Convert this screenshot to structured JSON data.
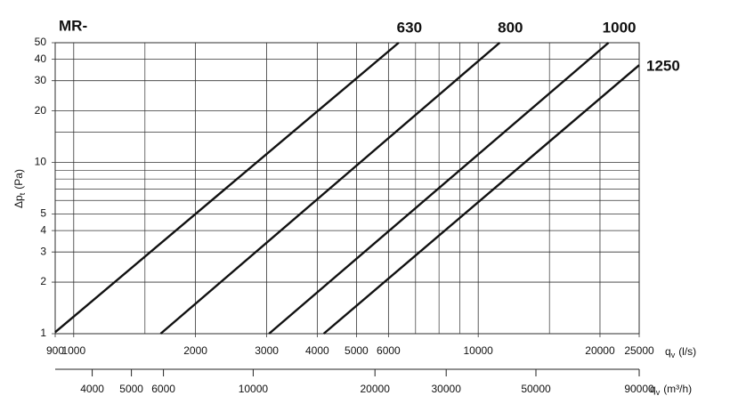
{
  "chart_data": {
    "type": "line",
    "title": "MR-",
    "ylabel": {
      "symbol": "Δp",
      "sub": "t",
      "unit": "(Pa)"
    },
    "xlabel": {
      "symbol": "q",
      "sub": "v",
      "unit": "(l/s)"
    },
    "x2label": {
      "symbol": "q",
      "sub": "v",
      "unit": "(m³/h)"
    },
    "log_x": true,
    "log_y": true,
    "grid": true,
    "xlim": [
      900,
      25000
    ],
    "xticks": [
      900,
      1000,
      2000,
      3000,
      4000,
      5000,
      6000,
      10000,
      20000,
      25000
    ],
    "xminor": [
      1500,
      7000,
      8000,
      9000,
      15000
    ],
    "x2lim": [
      3240,
      90000
    ],
    "x2ticks": [
      4000,
      5000,
      6000,
      10000,
      20000,
      30000,
      50000,
      90000
    ],
    "ylim": [
      1,
      50
    ],
    "yticks": [
      1,
      2,
      3,
      4,
      5,
      10,
      20,
      30,
      40,
      50
    ],
    "yminor": [
      6,
      7,
      8,
      9,
      15
    ],
    "series": [
      {
        "name": "630",
        "color": "#111111",
        "x": [
          900,
          6360
        ],
        "values": [
          1.02,
          50
        ]
      },
      {
        "name": "800",
        "color": "#111111",
        "x": [
          1640,
          11300
        ],
        "values": [
          1,
          50
        ]
      },
      {
        "name": "1000",
        "color": "#111111",
        "x": [
          3040,
          21000
        ],
        "values": [
          1,
          50
        ]
      },
      {
        "name": "1250",
        "color": "#111111",
        "x": [
          4150,
          25000
        ],
        "values": [
          1,
          37
        ]
      }
    ]
  }
}
